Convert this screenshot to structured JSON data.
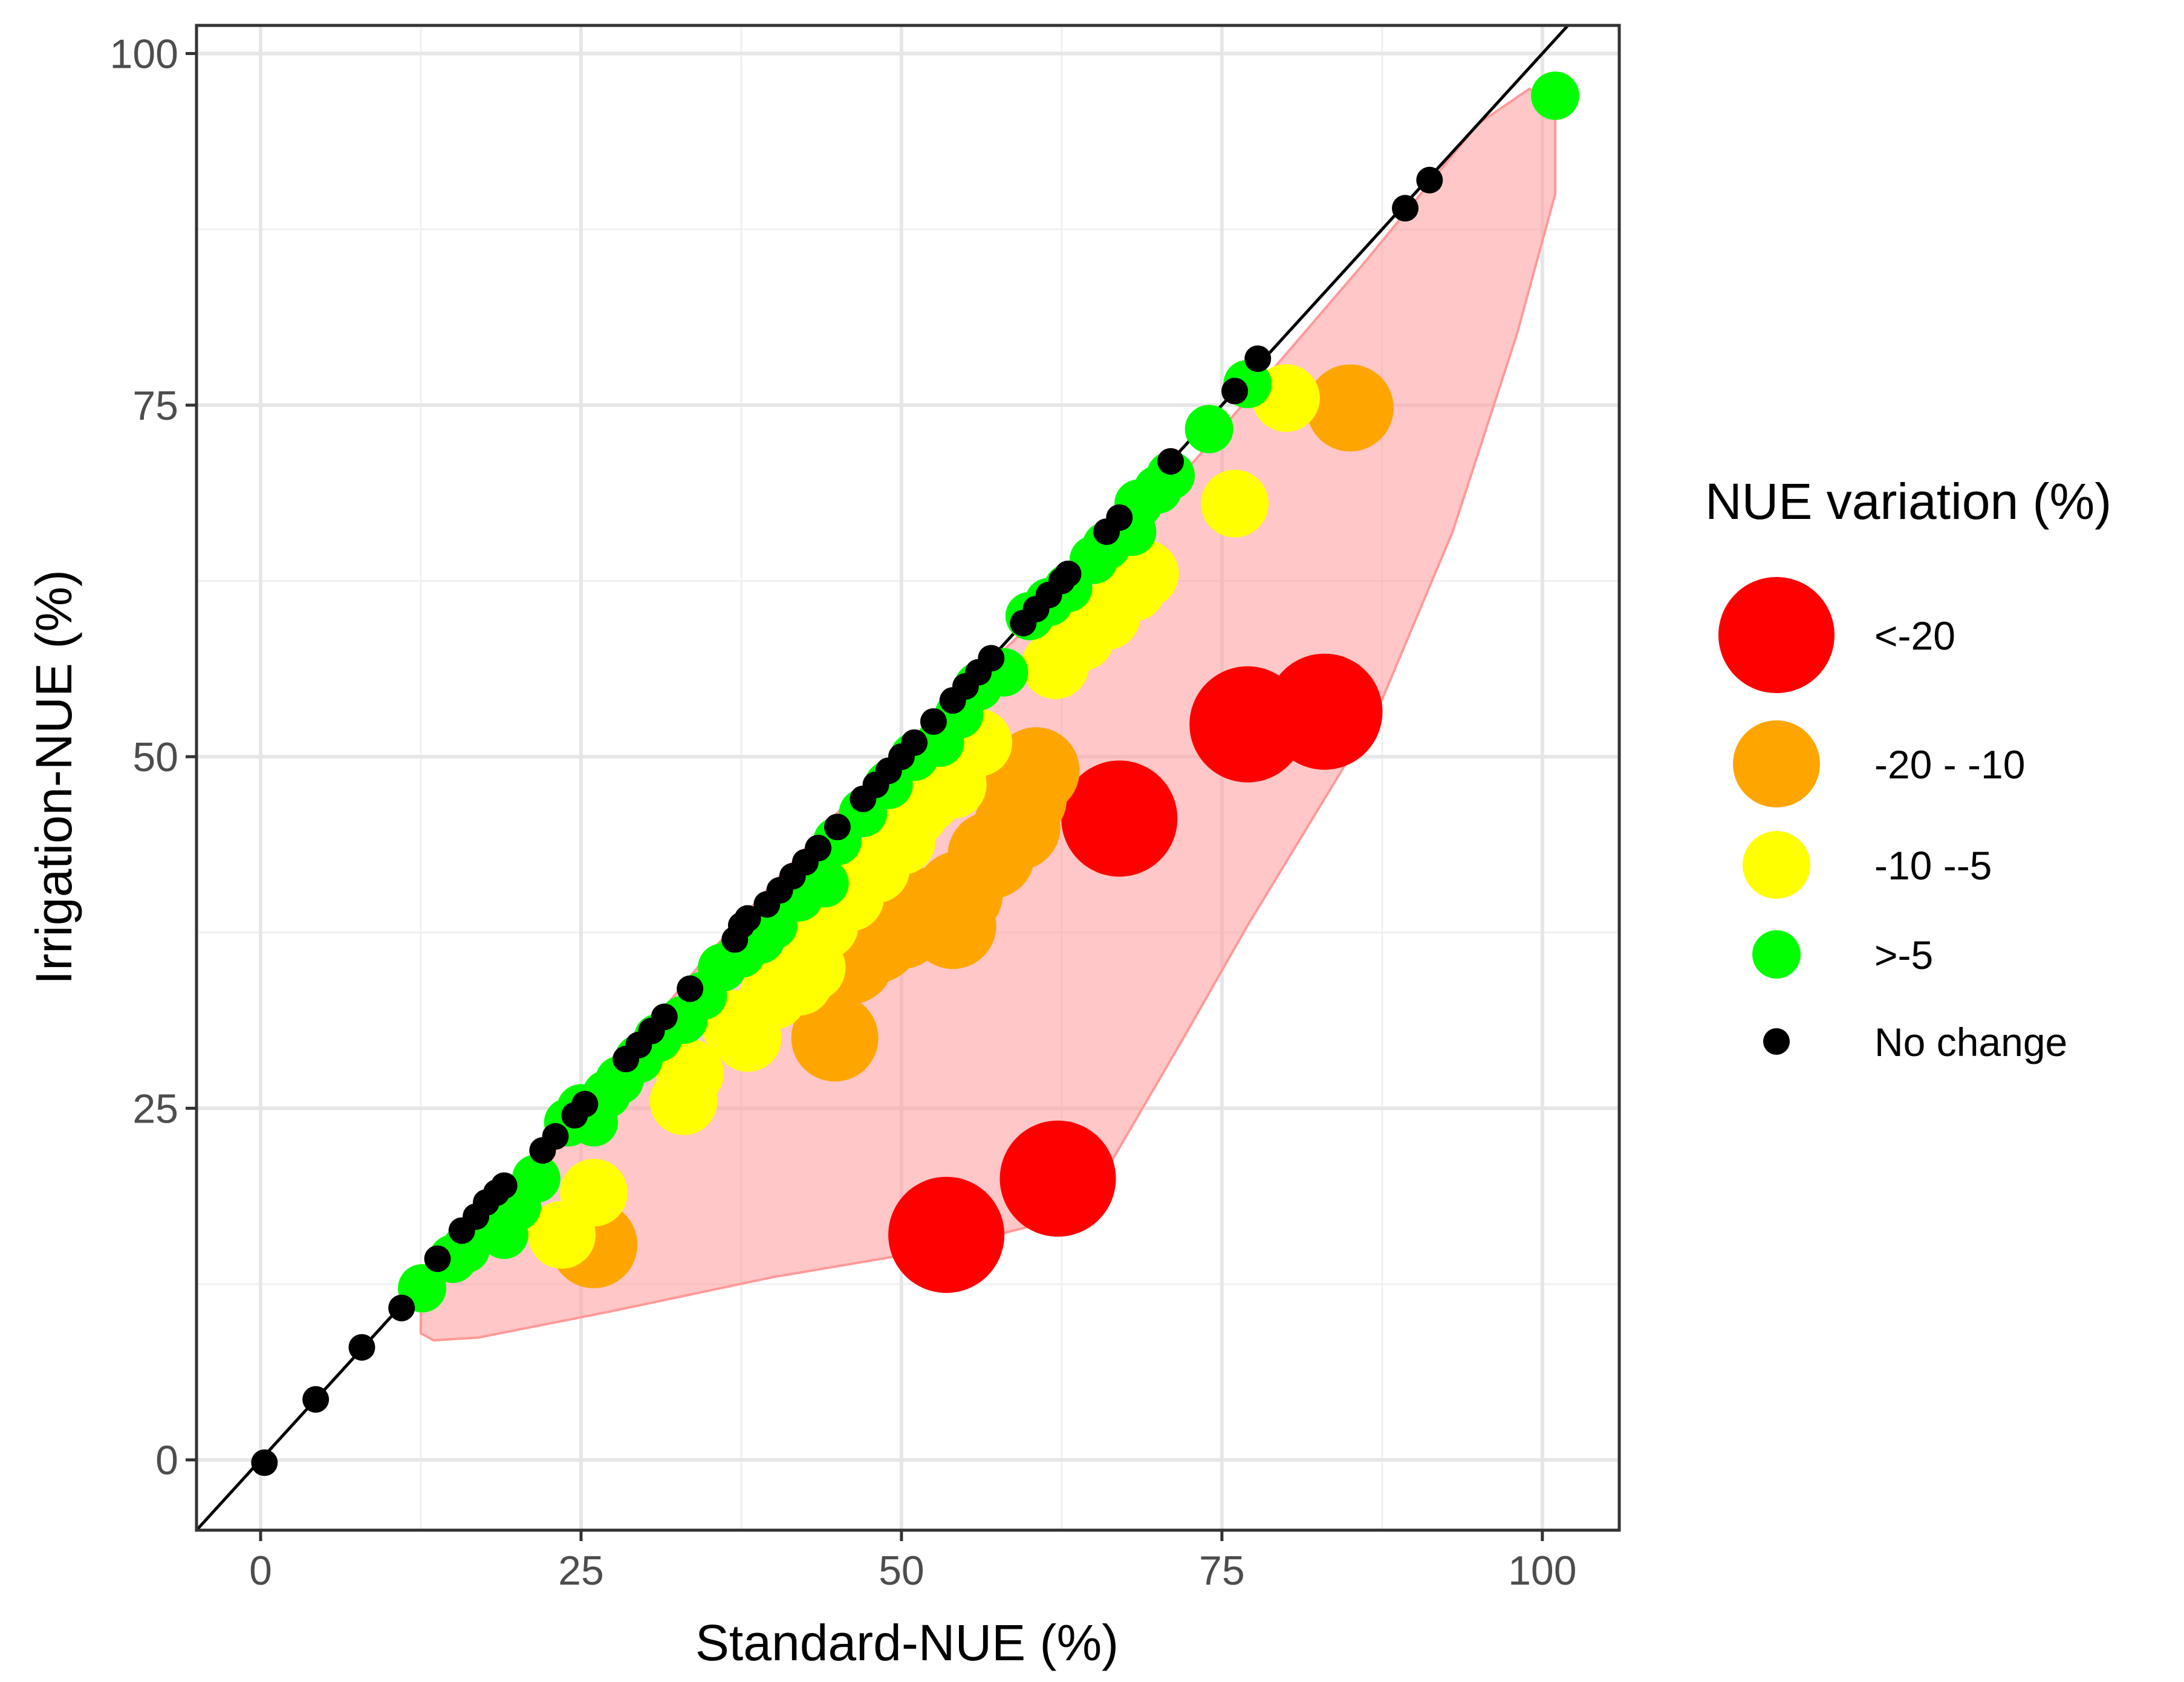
{
  "chart_data": {
    "type": "scatter",
    "xlabel": "Standard-NUE (%)",
    "ylabel": "Irrigation-NUE (%)",
    "xlim": [
      -5,
      106
    ],
    "ylim": [
      -5,
      102
    ],
    "x_ticks": [
      0,
      25,
      50,
      75,
      100
    ],
    "y_ticks": [
      0,
      25,
      50,
      75,
      100
    ],
    "grid": true,
    "identity_line": true,
    "legend": {
      "title": "NUE variation (%)",
      "placement": "right",
      "entries": [
        {
          "label": "<-20",
          "color": "#ff0000",
          "size": "largest"
        },
        {
          "label": "-20 - -10",
          "color": "#ffa500",
          "size": "large"
        },
        {
          "label": "-10 --5",
          "color": "#ffff00",
          "size": "medium"
        },
        {
          "label": ">-5",
          "color": "#00ff00",
          "size": "small"
        },
        {
          "label": "No change",
          "color": "#000000",
          "size": "smallest"
        }
      ]
    },
    "hull": {
      "color": "#ff9999",
      "points": [
        [
          12.5,
          9
        ],
        [
          13.5,
          8.5
        ],
        [
          17,
          8.7
        ],
        [
          27,
          10.5
        ],
        [
          40,
          13
        ],
        [
          53,
          15
        ],
        [
          64,
          17.5
        ],
        [
          72,
          30
        ],
        [
          77,
          38
        ],
        [
          87,
          53
        ],
        [
          93,
          66
        ],
        [
          98,
          80
        ],
        [
          101,
          90
        ],
        [
          101,
          96
        ],
        [
          99,
          97.5
        ],
        [
          95,
          95
        ],
        [
          86,
          85
        ],
        [
          70,
          68
        ],
        [
          55,
          55
        ],
        [
          45,
          46
        ],
        [
          35,
          36
        ],
        [
          25,
          25
        ],
        [
          18,
          17
        ],
        [
          12.5,
          10.5
        ]
      ]
    },
    "series": [
      {
        "name": "<-20",
        "color": "#ff0000",
        "points": [
          [
            53.5,
            16
          ],
          [
            62.2,
            20
          ],
          [
            67,
            45.6
          ],
          [
            77,
            52.3
          ],
          [
            83,
            53.2
          ]
        ]
      },
      {
        "name": "-20 - -10",
        "color": "#ffa500",
        "points": [
          [
            26,
            15.3
          ],
          [
            44.8,
            30
          ],
          [
            46,
            35.5
          ],
          [
            48,
            37
          ],
          [
            50,
            38
          ],
          [
            52,
            39
          ],
          [
            54,
            38
          ],
          [
            54.5,
            40.2
          ],
          [
            57,
            43
          ],
          [
            59,
            45
          ],
          [
            59.5,
            47
          ],
          [
            60.5,
            49
          ],
          [
            85,
            74.8
          ]
        ]
      },
      {
        "name": "-10 --5",
        "color": "#ffff00",
        "points": [
          [
            23.5,
            16
          ],
          [
            26,
            19
          ],
          [
            33,
            25.5
          ],
          [
            33.5,
            27.5
          ],
          [
            37,
            31
          ],
          [
            38,
            30
          ],
          [
            40,
            33
          ],
          [
            42,
            34
          ],
          [
            43,
            35
          ],
          [
            44,
            38
          ],
          [
            46,
            40
          ],
          [
            48,
            42
          ],
          [
            50,
            44
          ],
          [
            51,
            46
          ],
          [
            52,
            47
          ],
          [
            54,
            48
          ],
          [
            56,
            51
          ],
          [
            62,
            56.5
          ],
          [
            64,
            58.5
          ],
          [
            66,
            60
          ],
          [
            68,
            62
          ],
          [
            69,
            63
          ],
          [
            76,
            68
          ],
          [
            80,
            75.5
          ]
        ]
      },
      {
        "name": ">-5",
        "color": "#00ff00",
        "points": [
          [
            12.6,
            12.2
          ],
          [
            15,
            14.3
          ],
          [
            16,
            15
          ],
          [
            19,
            16
          ],
          [
            20,
            18
          ],
          [
            21.5,
            20
          ],
          [
            24,
            24
          ],
          [
            25,
            25
          ],
          [
            26,
            24
          ],
          [
            27,
            26
          ],
          [
            28,
            27
          ],
          [
            29.5,
            28.5
          ],
          [
            31,
            30
          ],
          [
            33,
            31.3
          ],
          [
            34.5,
            33
          ],
          [
            36,
            35
          ],
          [
            37.5,
            36
          ],
          [
            39,
            37
          ],
          [
            40,
            38
          ],
          [
            42,
            40
          ],
          [
            44,
            41
          ],
          [
            45,
            44
          ],
          [
            47,
            46
          ],
          [
            49,
            48
          ],
          [
            51,
            50
          ],
          [
            53,
            51
          ],
          [
            54.5,
            53
          ],
          [
            56,
            55
          ],
          [
            58,
            56
          ],
          [
            60,
            60
          ],
          [
            61.5,
            61
          ],
          [
            63,
            62
          ],
          [
            65,
            64
          ],
          [
            66,
            65
          ],
          [
            68,
            66
          ],
          [
            68.5,
            68
          ],
          [
            70,
            69
          ],
          [
            71,
            70
          ],
          [
            74,
            73.3
          ],
          [
            77,
            76.5
          ],
          [
            101,
            97
          ]
        ]
      },
      {
        "name": "No change",
        "color": "#000000",
        "points": [
          [
            0.3,
            -0.2
          ],
          [
            4.3,
            4.3
          ],
          [
            7.9,
            8
          ],
          [
            11,
            10.8
          ],
          [
            13.8,
            14.3
          ],
          [
            15.7,
            16.3
          ],
          [
            16.8,
            17.3
          ],
          [
            17.6,
            18.3
          ],
          [
            18.4,
            19
          ],
          [
            19,
            19.5
          ],
          [
            22,
            22
          ],
          [
            23,
            23
          ],
          [
            24.5,
            24.5
          ],
          [
            25.3,
            25.3
          ],
          [
            28.5,
            28.5
          ],
          [
            29.5,
            29.5
          ],
          [
            30.5,
            30.5
          ],
          [
            31.5,
            31.5
          ],
          [
            33.5,
            33.5
          ],
          [
            37,
            37
          ],
          [
            37.5,
            38
          ],
          [
            38,
            38.5
          ],
          [
            39.5,
            39.5
          ],
          [
            40.5,
            40.5
          ],
          [
            41.5,
            41.5
          ],
          [
            42.5,
            42.5
          ],
          [
            43.5,
            43.5
          ],
          [
            45,
            45
          ],
          [
            47,
            47
          ],
          [
            48,
            48
          ],
          [
            49,
            49
          ],
          [
            50,
            50
          ],
          [
            51,
            51
          ],
          [
            52.5,
            52.5
          ],
          [
            54,
            54
          ],
          [
            55,
            55
          ],
          [
            56,
            56
          ],
          [
            57,
            57
          ],
          [
            59.5,
            59.5
          ],
          [
            60.5,
            60.5
          ],
          [
            61.5,
            61.5
          ],
          [
            62.5,
            62.5
          ],
          [
            63,
            63
          ],
          [
            66,
            66
          ],
          [
            67,
            67
          ],
          [
            71,
            71
          ],
          [
            76,
            76
          ],
          [
            77.8,
            78.3
          ],
          [
            89.3,
            89
          ],
          [
            91.2,
            91
          ]
        ]
      }
    ]
  }
}
